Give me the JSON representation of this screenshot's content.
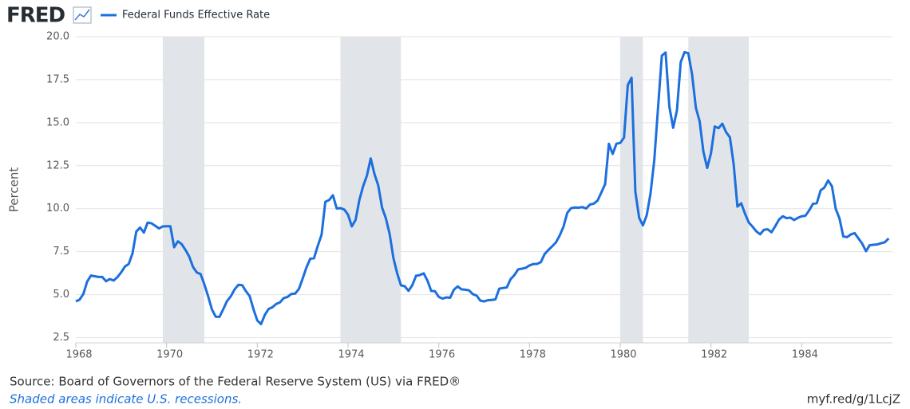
{
  "chart_data": {
    "type": "line",
    "logo": "FRED",
    "y_label": "Percent",
    "source": "Source: Board of Governors of the Federal Reserve System (US) via FRED®",
    "note": "Shaded areas indicate U.S. recessions.",
    "short_url": "myf.red/g/1LcjZ",
    "xlim": [
      1968,
      1986
    ],
    "xticks": [
      1968,
      1970,
      1972,
      1974,
      1976,
      1978,
      1980,
      1982,
      1984
    ],
    "ylim": [
      2.2,
      20
    ],
    "yticks": [
      2.5,
      {
        "value": 5,
        "label": "5.0"
      },
      7.5,
      {
        "value": 10,
        "label": "10.0"
      },
      12.5,
      {
        "value": 15,
        "label": "15.0"
      },
      17.5,
      {
        "value": 20,
        "label": "20.0"
      }
    ],
    "grid": true,
    "recessions": [
      [
        1969.917,
        1970.833
      ],
      [
        1973.833,
        1975.167
      ],
      [
        1980.0,
        1980.5
      ],
      [
        1981.5,
        1982.833
      ]
    ],
    "recession_color": "#e1e5ea",
    "x": [
      1968,
      1968.083,
      1968.167,
      1968.25,
      1968.333,
      1968.417,
      1968.5,
      1968.583,
      1968.667,
      1968.75,
      1968.833,
      1968.917,
      1969,
      1969.083,
      1969.167,
      1969.25,
      1969.333,
      1969.417,
      1969.5,
      1969.583,
      1969.667,
      1969.75,
      1969.833,
      1969.917,
      1970,
      1970.083,
      1970.167,
      1970.25,
      1970.333,
      1970.417,
      1970.5,
      1970.583,
      1970.667,
      1970.75,
      1970.833,
      1970.917,
      1971,
      1971.083,
      1971.167,
      1971.25,
      1971.333,
      1971.417,
      1971.5,
      1971.583,
      1971.667,
      1971.75,
      1971.833,
      1971.917,
      1972,
      1972.083,
      1972.167,
      1972.25,
      1972.333,
      1972.417,
      1972.5,
      1972.583,
      1972.667,
      1972.75,
      1972.833,
      1972.917,
      1973,
      1973.083,
      1973.167,
      1973.25,
      1973.333,
      1973.417,
      1973.5,
      1973.583,
      1973.667,
      1973.75,
      1973.833,
      1973.917,
      1974,
      1974.083,
      1974.167,
      1974.25,
      1974.333,
      1974.417,
      1974.5,
      1974.583,
      1974.667,
      1974.75,
      1974.833,
      1974.917,
      1975,
      1975.083,
      1975.167,
      1975.25,
      1975.333,
      1975.417,
      1975.5,
      1975.583,
      1975.667,
      1975.75,
      1975.833,
      1975.917,
      1976,
      1976.083,
      1976.167,
      1976.25,
      1976.333,
      1976.417,
      1976.5,
      1976.583,
      1976.667,
      1976.75,
      1976.833,
      1976.917,
      1977,
      1977.083,
      1977.167,
      1977.25,
      1977.333,
      1977.417,
      1977.5,
      1977.583,
      1977.667,
      1977.75,
      1977.833,
      1977.917,
      1978,
      1978.083,
      1978.167,
      1978.25,
      1978.333,
      1978.417,
      1978.5,
      1978.583,
      1978.667,
      1978.75,
      1978.833,
      1978.917,
      1979,
      1979.083,
      1979.167,
      1979.25,
      1979.333,
      1979.417,
      1979.5,
      1979.583,
      1979.667,
      1979.75,
      1979.833,
      1979.917,
      1980,
      1980.083,
      1980.167,
      1980.25,
      1980.333,
      1980.417,
      1980.5,
      1980.583,
      1980.667,
      1980.75,
      1980.833,
      1980.917,
      1981,
      1981.083,
      1981.167,
      1981.25,
      1981.333,
      1981.417,
      1981.5,
      1981.583,
      1981.667,
      1981.75,
      1981.833,
      1981.917,
      1982,
      1982.083,
      1982.167,
      1982.25,
      1982.333,
      1982.417,
      1982.5,
      1982.583,
      1982.667,
      1982.75,
      1982.833,
      1982.917,
      1983,
      1983.083,
      1983.167,
      1983.25,
      1983.333,
      1983.417,
      1983.5,
      1983.583,
      1983.667,
      1983.75,
      1983.833,
      1983.917,
      1984,
      1984.083,
      1984.167,
      1984.25,
      1984.333,
      1984.417,
      1984.5,
      1984.583,
      1984.667,
      1984.75,
      1984.833,
      1984.917,
      1985,
      1985.083,
      1985.167,
      1985.25,
      1985.333,
      1985.417,
      1985.5,
      1985.583,
      1985.667,
      1985.75,
      1985.833,
      1985.917
    ],
    "series": [
      {
        "name": "Federal Funds Effective Rate",
        "color": "#1c6fdd",
        "values": [
          4.61,
          4.71,
          5.05,
          5.76,
          6.11,
          6.07,
          6.03,
          6.03,
          5.78,
          5.91,
          5.82,
          6.02,
          6.3,
          6.64,
          6.79,
          7.41,
          8.67,
          8.9,
          8.61,
          9.19,
          9.15,
          9.0,
          8.85,
          8.97,
          8.98,
          8.98,
          7.76,
          8.1,
          7.94,
          7.6,
          7.21,
          6.61,
          6.29,
          6.2,
          5.6,
          4.9,
          4.14,
          3.72,
          3.71,
          4.16,
          4.63,
          4.91,
          5.31,
          5.57,
          5.55,
          5.2,
          4.91,
          4.14,
          3.5,
          3.29,
          3.83,
          4.17,
          4.27,
          4.46,
          4.55,
          4.8,
          4.87,
          5.04,
          5.06,
          5.33,
          5.94,
          6.58,
          7.09,
          7.12,
          7.84,
          8.49,
          10.4,
          10.5,
          10.78,
          10.01,
          10.03,
          9.95,
          9.65,
          8.97,
          9.35,
          10.51,
          11.31,
          11.93,
          12.92,
          12.01,
          11.34,
          10.06,
          9.45,
          8.53,
          7.13,
          6.24,
          5.54,
          5.49,
          5.22,
          5.55,
          6.1,
          6.14,
          6.24,
          5.82,
          5.22,
          5.2,
          4.87,
          4.77,
          4.84,
          4.82,
          5.29,
          5.48,
          5.31,
          5.29,
          5.25,
          5.03,
          4.95,
          4.65,
          4.61,
          4.68,
          4.69,
          4.73,
          5.35,
          5.39,
          5.42,
          5.9,
          6.14,
          6.47,
          6.51,
          6.56,
          6.7,
          6.78,
          6.79,
          6.89,
          7.36,
          7.6,
          7.81,
          8.04,
          8.45,
          8.96,
          9.76,
          10.03,
          10.07,
          10.06,
          10.09,
          10.01,
          10.24,
          10.29,
          10.47,
          10.94,
          11.43,
          13.77,
          13.18,
          13.78,
          13.82,
          14.13,
          17.19,
          17.61,
          10.98,
          9.47,
          9.03,
          9.61,
          10.87,
          12.81,
          15.85,
          18.9,
          19.08,
          15.93,
          14.7,
          15.72,
          18.52,
          19.1,
          19.04,
          17.82,
          15.87,
          15.08,
          13.31,
          12.37,
          13.22,
          14.78,
          14.68,
          14.94,
          14.45,
          14.15,
          12.59,
          10.12,
          10.31,
          9.71,
          9.2,
          8.95,
          8.68,
          8.51,
          8.77,
          8.8,
          8.63,
          8.98,
          9.37,
          9.56,
          9.45,
          9.48,
          9.34,
          9.47,
          9.56,
          9.59,
          9.91,
          10.29,
          10.32,
          11.06,
          11.23,
          11.64,
          11.3,
          9.99,
          9.43,
          8.38,
          8.35,
          8.5,
          8.58,
          8.27,
          7.97,
          7.53,
          7.88,
          7.9,
          7.92,
          7.99,
          8.05,
          8.27
        ]
      }
    ]
  }
}
